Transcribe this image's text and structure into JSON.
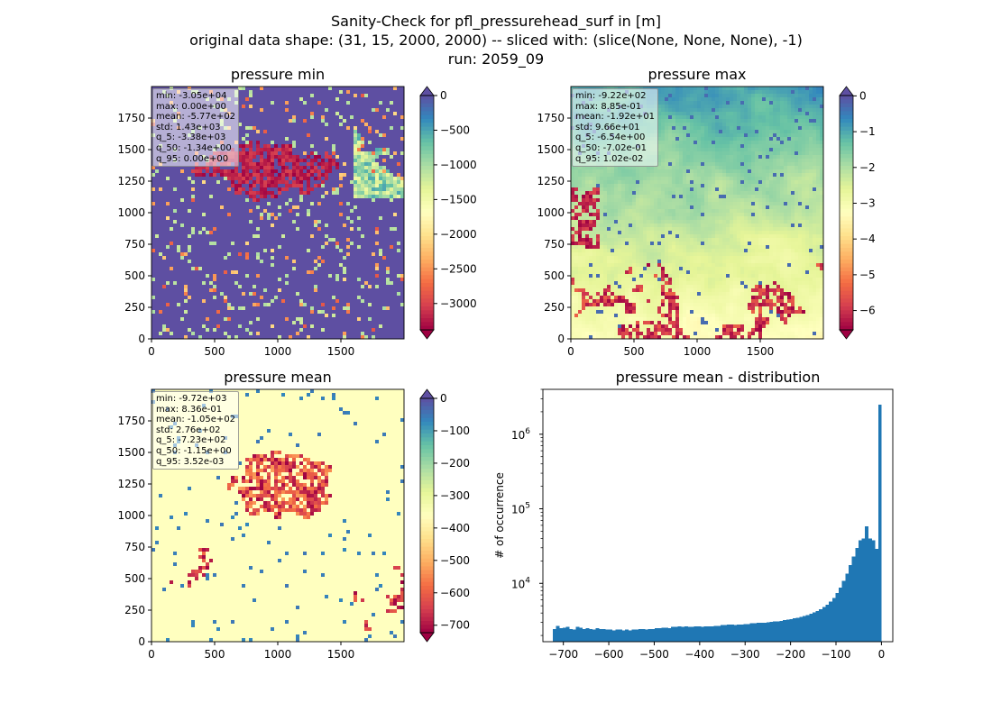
{
  "figure": {
    "title_line1": "Sanity-Check for pfl_pressurehead_surf in [m]",
    "title_line2": "original data shape: (31, 15, 2000, 2000) -- sliced with: (slice(None, None, None), -1)",
    "title_line3": "run: 2059_09"
  },
  "chart_data": [
    {
      "type": "heatmap",
      "title": "pressure min",
      "xlim": [
        0,
        2000
      ],
      "ylim": [
        0,
        2000
      ],
      "xticks": [
        0,
        500,
        1000,
        1500
      ],
      "yticks": [
        0,
        250,
        500,
        750,
        1000,
        1250,
        1500,
        1750
      ],
      "colormap": "Spectral",
      "colorbar": {
        "ticks": [
          0,
          -500,
          -1000,
          -1500,
          -2000,
          -2500,
          -3000
        ],
        "range": [
          -3380,
          0
        ],
        "extend": "both"
      },
      "stats": [
        "min: -3.05e+04",
        "max: 0.00e+00",
        "mean: -5.77e+02",
        "std: 1.43e+03",
        "q_5: -3.38e+03",
        "q_50: -1.34e+00",
        "q_95: 0.00e+00"
      ]
    },
    {
      "type": "heatmap",
      "title": "pressure max",
      "xlim": [
        0,
        2000
      ],
      "ylim": [
        0,
        2000
      ],
      "xticks": [
        0,
        500,
        1000,
        1500
      ],
      "yticks": [
        0,
        250,
        500,
        750,
        1000,
        1250,
        1500,
        1750
      ],
      "colormap": "Spectral",
      "colorbar": {
        "ticks": [
          0,
          -1,
          -2,
          -3,
          -4,
          -5,
          -6
        ],
        "range": [
          -6.54,
          0.0102
        ],
        "extend": "both"
      },
      "stats": [
        "min: -9.22e+02",
        "max: 8.85e-01",
        "mean: -1.92e+01",
        "std: 9.66e+01",
        "q_5: -6.54e+00",
        "q_50: -7.02e-01",
        "q_95: 1.02e-02"
      ]
    },
    {
      "type": "heatmap",
      "title": "pressure mean",
      "xlim": [
        0,
        2000
      ],
      "ylim": [
        0,
        2000
      ],
      "xticks": [
        0,
        500,
        1000,
        1500
      ],
      "yticks": [
        0,
        250,
        500,
        750,
        1000,
        1250,
        1500,
        1750
      ],
      "colormap": "Spectral",
      "colorbar": {
        "ticks": [
          0,
          -100,
          -200,
          -300,
          -400,
          -500,
          -600,
          -700
        ],
        "range": [
          -723,
          0
        ],
        "extend": "both"
      },
      "stats": [
        "min: -9.72e+03",
        "max: 8.36e-01",
        "mean: -1.05e+02",
        "std: 2.76e+02",
        "q_5: -7.23e+02",
        "q_50: -1.15e+00",
        "q_95: 3.52e-03"
      ]
    },
    {
      "type": "bar",
      "title": "pressure mean - distribution",
      "xlabel": "",
      "ylabel": "# of occurrence",
      "yscale": "log",
      "xlim": [
        -745,
        25
      ],
      "ylim": [
        1650,
        4000000
      ],
      "xticks": [
        -700,
        -600,
        -500,
        -400,
        -300,
        -200,
        -100,
        0
      ],
      "yticks": [
        10000,
        100000,
        1000000
      ],
      "bar_color": "#1f77b4",
      "bin_range": [
        -723,
        0
      ],
      "bin_count": 100,
      "values": [
        2450,
        2700,
        2500,
        2550,
        2600,
        2450,
        2400,
        2600,
        2550,
        2450,
        2500,
        2450,
        2400,
        2500,
        2450,
        2450,
        2400,
        2400,
        2350,
        2400,
        2400,
        2350,
        2400,
        2350,
        2400,
        2400,
        2450,
        2450,
        2400,
        2450,
        2450,
        2500,
        2500,
        2550,
        2550,
        2500,
        2600,
        2600,
        2650,
        2600,
        2650,
        2600,
        2600,
        2650,
        2650,
        2600,
        2650,
        2650,
        2650,
        2700,
        2700,
        2750,
        2750,
        2800,
        2800,
        2750,
        2800,
        2800,
        2850,
        2850,
        2900,
        2900,
        2950,
        2950,
        2950,
        3000,
        3050,
        3100,
        3100,
        3150,
        3200,
        3250,
        3300,
        3400,
        3450,
        3550,
        3650,
        3750,
        3900,
        4050,
        4250,
        4500,
        4800,
        5200,
        5700,
        6400,
        7400,
        8800,
        10800,
        13500,
        17500,
        23000,
        30000,
        38000,
        40000,
        58000,
        40000,
        38000,
        29000,
        2500000
      ]
    }
  ]
}
